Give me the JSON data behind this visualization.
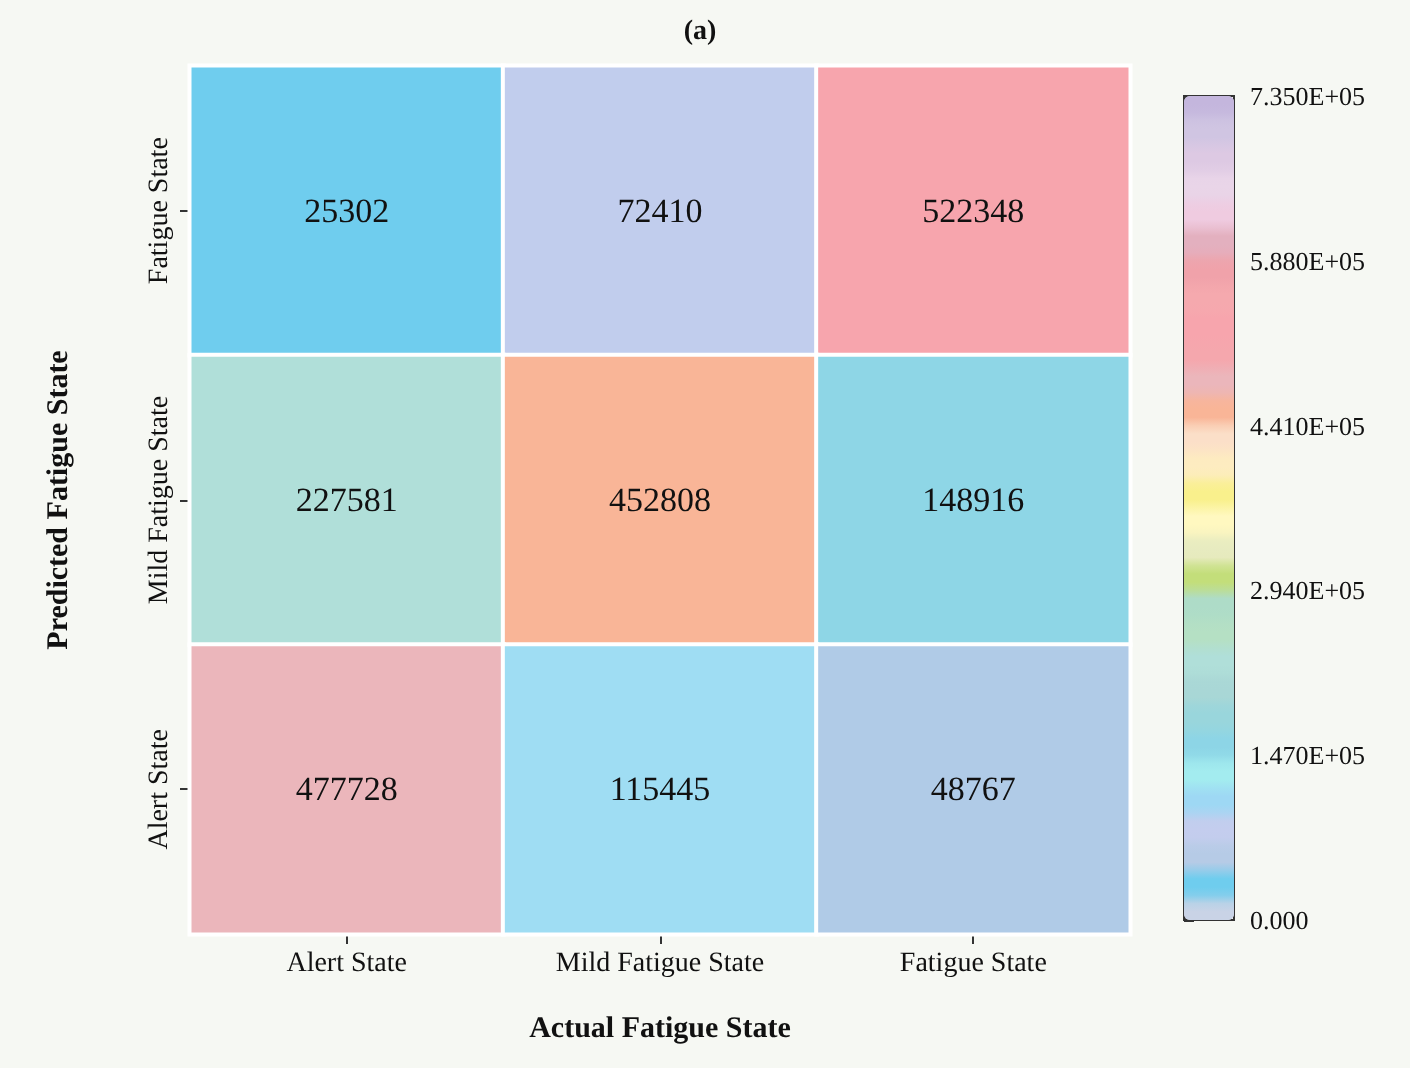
{
  "chart_data": {
    "type": "heatmap",
    "title": "(a)",
    "xlabel": "Actual Fatigue State",
    "ylabel": "Predicted Fatigue State",
    "categories": [
      "Alert State",
      "Mild Fatigue State",
      "Fatigue State"
    ],
    "y_categories": [
      "Fatigue State",
      "Mild Fatigue State",
      "Alert State"
    ],
    "cells": [
      [
        25302,
        72410,
        522348
      ],
      [
        227581,
        452808,
        148916
      ],
      [
        477728,
        115445,
        48767
      ]
    ],
    "data_labels": true,
    "clim": [
      0,
      735000
    ],
    "cticks": [
      {
        "value": 0,
        "label": "0.000"
      },
      {
        "value": 147000,
        "label": "1.470E+05"
      },
      {
        "value": 294000,
        "label": "2.940E+05"
      },
      {
        "value": 441000,
        "label": "4.410E+05"
      },
      {
        "value": 588000,
        "label": "5.880E+05"
      },
      {
        "value": 735000,
        "label": "7.350E+05"
      }
    ],
    "colors": [
      "#c9d3e6",
      "#6fcdee",
      "#b6cbe6",
      "#c4cdee",
      "#9ed8f4",
      "#a3ecef",
      "#8dd5e6",
      "#99d6dc",
      "#a9d7d6",
      "#b0dfd9",
      "#b5e0c4",
      "#aedcc8",
      "#c3de7a",
      "#e7ebc0",
      "#fff8c0",
      "#f9f08c",
      "#fdecc0",
      "#fbdfc8",
      "#f9b597",
      "#ebb6bb",
      "#f5a7ad",
      "#f7a5ad",
      "#f5a9ae",
      "#f0a2aa",
      "#e3b0bf",
      "#efcbe0",
      "#e9d5e8",
      "#ddc9e3",
      "#d0c5e2",
      "#c4b6dd"
    ]
  }
}
